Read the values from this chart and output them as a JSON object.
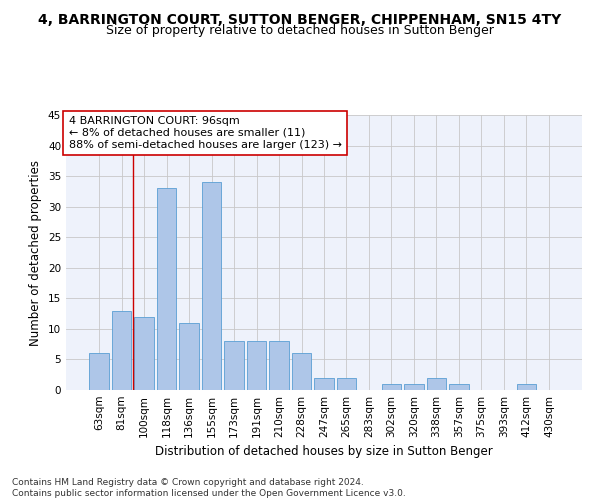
{
  "title": "4, BARRINGTON COURT, SUTTON BENGER, CHIPPENHAM, SN15 4TY",
  "subtitle": "Size of property relative to detached houses in Sutton Benger",
  "xlabel": "Distribution of detached houses by size in Sutton Benger",
  "ylabel": "Number of detached properties",
  "categories": [
    "63sqm",
    "81sqm",
    "100sqm",
    "118sqm",
    "136sqm",
    "155sqm",
    "173sqm",
    "191sqm",
    "210sqm",
    "228sqm",
    "247sqm",
    "265sqm",
    "283sqm",
    "302sqm",
    "320sqm",
    "338sqm",
    "357sqm",
    "375sqm",
    "393sqm",
    "412sqm",
    "430sqm"
  ],
  "values": [
    6,
    13,
    12,
    33,
    11,
    34,
    8,
    8,
    8,
    6,
    2,
    2,
    0,
    1,
    1,
    2,
    1,
    0,
    0,
    1,
    0
  ],
  "bar_color": "#aec6e8",
  "bar_edge_color": "#5a9fd4",
  "annotation_box_text": "4 BARRINGTON COURT: 96sqm\n← 8% of detached houses are smaller (11)\n88% of semi-detached houses are larger (123) →",
  "annotation_box_color": "#ffffff",
  "annotation_box_edge_color": "#cc0000",
  "vline_color": "#cc0000",
  "vline_x_index": 1.5,
  "ylim": [
    0,
    45
  ],
  "yticks": [
    0,
    5,
    10,
    15,
    20,
    25,
    30,
    35,
    40,
    45
  ],
  "footer_line1": "Contains HM Land Registry data © Crown copyright and database right 2024.",
  "footer_line2": "Contains public sector information licensed under the Open Government Licence v3.0.",
  "bg_color": "#eef2fb",
  "grid_color": "#c8c8c8",
  "title_fontsize": 10,
  "subtitle_fontsize": 9,
  "axis_label_fontsize": 8.5,
  "tick_fontsize": 7.5,
  "annotation_fontsize": 8,
  "footer_fontsize": 6.5
}
